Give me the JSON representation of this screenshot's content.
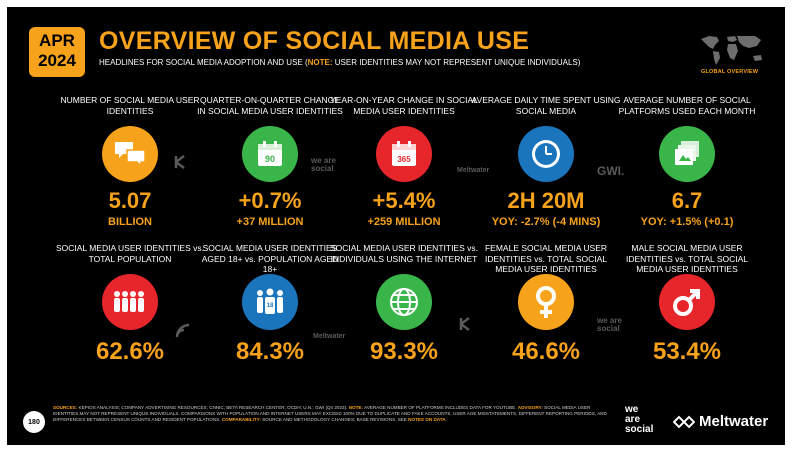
{
  "header": {
    "month": "APR",
    "year": "2024",
    "title": "OVERVIEW OF SOCIAL MEDIA USE",
    "subtitle_main": "HEADLINES FOR SOCIAL MEDIA ADOPTION AND USE (",
    "subtitle_note_label": "NOTE:",
    "subtitle_note_text": " USER IDENTITIES MAY NOT REPRESENT UNIQUE INDIVIDUALS)",
    "map_label": "GLOBAL OVERVIEW"
  },
  "colors": {
    "accent": "#f7a21b",
    "orange": "#f7a21b",
    "green": "#3ab54a",
    "red": "#e7262b",
    "blue": "#1b75bc"
  },
  "row1": [
    {
      "label": "NUMBER OF SOCIAL MEDIA USER IDENTITIES",
      "icon": "chat-bubbles-icon",
      "value": "5.07",
      "sub": "BILLION"
    },
    {
      "label": "QUARTER-ON-QUARTER CHANGE IN SOCIAL MEDIA USER IDENTITIES",
      "icon": "calendar-icon",
      "icon_text": "90",
      "value": "+0.7%",
      "sub": "+37 MILLION"
    },
    {
      "label": "YEAR-ON-YEAR CHANGE IN SOCIAL MEDIA USER IDENTITIES",
      "icon": "calendar-icon",
      "icon_text": "365",
      "value": "+5.4%",
      "sub": "+259 MILLION"
    },
    {
      "label": "AVERAGE DAILY TIME SPENT USING SOCIAL MEDIA",
      "icon": "clock-icon",
      "value": "2H 20M",
      "sub": "YOY: -2.7% (-4 MINS)"
    },
    {
      "label": "AVERAGE NUMBER OF SOCIAL PLATFORMS USED EACH MONTH",
      "icon": "stacked-cards-icon",
      "value": "6.7",
      "sub": "YOY: +1.5% (+0.1)"
    }
  ],
  "row2": [
    {
      "label": "SOCIAL MEDIA USER IDENTITIES vs. TOTAL POPULATION",
      "icon": "people-group-icon",
      "value": "62.6%"
    },
    {
      "label": "SOCIAL MEDIA USER IDENTITIES AGED 18+ vs. POPULATION AGED 18+",
      "icon": "adults-18-icon",
      "icon_text": "18",
      "value": "84.3%"
    },
    {
      "label": "SOCIAL MEDIA USER IDENTITIES vs. INDIVIDUALS USING THE INTERNET",
      "icon": "globe-icon",
      "value": "93.3%"
    },
    {
      "label": "FEMALE SOCIAL MEDIA USER IDENTITIES vs. TOTAL SOCIAL MEDIA USER IDENTITIES",
      "icon": "female-symbol-icon",
      "value": "46.6%"
    },
    {
      "label": "MALE SOCIAL MEDIA USER IDENTITIES vs. TOTAL SOCIAL MEDIA USER IDENTITIES",
      "icon": "male-symbol-icon",
      "value": "53.4%"
    }
  ],
  "watermarks": {
    "was": "we are social",
    "meltwater": "Meltwater",
    "gwi": "GWI.",
    "kepios": "KEPIOS"
  },
  "footer": {
    "sources_label": "SOURCES:",
    "sources_text": " KEPIOS ANALYSIS; COMPANY ADVERTISING RESOURCES; CNNIC; BETA RESEARCH CENTER; OCDH; U.N.; GWI (Q4 2023). ",
    "note_label": "NOTE:",
    "note_text": " AVERAGE NUMBER OF PLATFORMS INCLUDES DATA FOR YOUTUBE. ",
    "advisory_label": "ADVISORY:",
    "advisory_text": " SOCIAL MEDIA USER IDENTITIES MAY NOT REPRESENT UNIQUE INDIVIDUALS. COMPARISONS WITH POPULATION AND INTERNET USERS MAY EXCEED 100% DUE TO DUPLICATE AND FAKE ACCOUNTS, USER AGE MISSTATEMENTS, DIFFERENT REPORTING PERIODS, AND DIFFERENCES BETWEEN CENSUS COUNTS AND RESIDENT POPULATIONS. ",
    "comparability_label": "COMPARABILITY:",
    "comparability_text": " SOURCE AND METHODOLOGY CHANGES; BASE REVISIONS. SEE ",
    "notes_link": "NOTES ON DATA",
    "end": "."
  },
  "page_number": "180",
  "brand": {
    "was_line1": "we",
    "was_line2": "are",
    "was_line3": "social",
    "meltwater": "Meltwater"
  }
}
